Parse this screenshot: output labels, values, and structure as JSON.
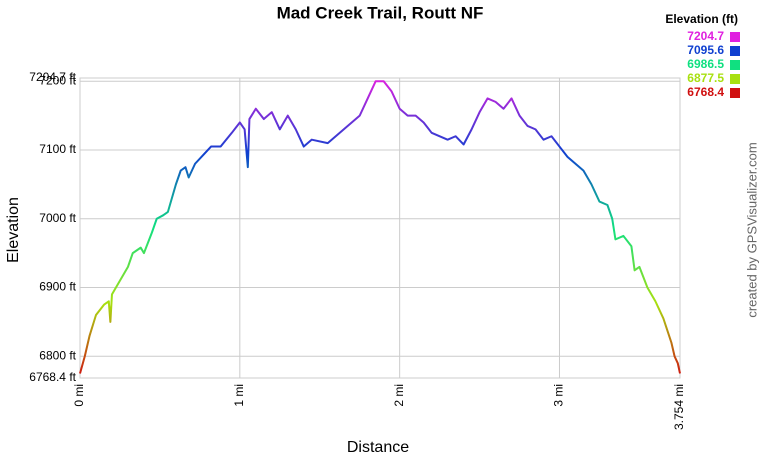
{
  "chart_data": {
    "type": "line",
    "title": "Mad Creek Trail, Routt NF",
    "x_label": "Distance",
    "y_label": "Elevation",
    "credit": "created by GPSVisualizer.com",
    "legend_title": "Elevation (ft)",
    "color_scale": [
      {
        "value": 7204.7,
        "color": "#e020e0"
      },
      {
        "value": 7095.6,
        "color": "#1040d0"
      },
      {
        "value": 6986.5,
        "color": "#10e080"
      },
      {
        "value": 6877.5,
        "color": "#a8e010"
      },
      {
        "value": 6768.4,
        "color": "#d01010"
      }
    ],
    "x": [
      0,
      0.03,
      0.06,
      0.1,
      0.15,
      0.18,
      0.19,
      0.2,
      0.25,
      0.3,
      0.33,
      0.38,
      0.4,
      0.45,
      0.48,
      0.52,
      0.55,
      0.6,
      0.63,
      0.66,
      0.68,
      0.72,
      0.78,
      0.82,
      0.88,
      0.95,
      1.0,
      1.03,
      1.05,
      1.06,
      1.1,
      1.15,
      1.2,
      1.25,
      1.3,
      1.35,
      1.4,
      1.45,
      1.55,
      1.6,
      1.65,
      1.7,
      1.75,
      1.8,
      1.85,
      1.9,
      1.95,
      2.0,
      2.05,
      2.1,
      2.15,
      2.2,
      2.3,
      2.35,
      2.4,
      2.45,
      2.5,
      2.55,
      2.6,
      2.65,
      2.7,
      2.75,
      2.8,
      2.85,
      2.9,
      2.95,
      3.0,
      3.05,
      3.1,
      3.15,
      3.2,
      3.25,
      3.3,
      3.33,
      3.35,
      3.4,
      3.45,
      3.47,
      3.5,
      3.55,
      3.6,
      3.65,
      3.7,
      3.72,
      3.74,
      3.754
    ],
    "values": [
      6775,
      6800,
      6830,
      6860,
      6875,
      6880,
      6850,
      6890,
      6910,
      6930,
      6950,
      6958,
      6950,
      6980,
      7000,
      7005,
      7010,
      7050,
      7070,
      7075,
      7060,
      7080,
      7095,
      7105,
      7105,
      7125,
      7140,
      7130,
      7075,
      7145,
      7160,
      7145,
      7155,
      7130,
      7150,
      7130,
      7105,
      7115,
      7110,
      7120,
      7130,
      7140,
      7150,
      7175,
      7200,
      7200,
      7185,
      7160,
      7150,
      7150,
      7140,
      7125,
      7115,
      7120,
      7108,
      7130,
      7155,
      7175,
      7170,
      7160,
      7175,
      7150,
      7135,
      7130,
      7115,
      7120,
      7105,
      7090,
      7080,
      7070,
      7050,
      7025,
      7020,
      7000,
      6970,
      6975,
      6960,
      6925,
      6930,
      6900,
      6880,
      6855,
      6820,
      6800,
      6790,
      6775
    ],
    "xlim": [
      0,
      3.754
    ],
    "xticks": [
      {
        "value": 0,
        "label": "0 mi"
      },
      {
        "value": 1,
        "label": "1 mi"
      },
      {
        "value": 2,
        "label": "2 mi"
      },
      {
        "value": 3,
        "label": "3 mi"
      },
      {
        "value": 3.754,
        "label": "3.754 mi"
      }
    ],
    "ylim": [
      6768.4,
      7204.7
    ],
    "yticks": [
      {
        "value": 6768.4,
        "label": "6768.4 ft"
      },
      {
        "value": 6800,
        "label": "6800 ft"
      },
      {
        "value": 6900,
        "label": "6900 ft"
      },
      {
        "value": 7000,
        "label": "7000 ft"
      },
      {
        "value": 7100,
        "label": "7100 ft"
      },
      {
        "value": 7200,
        "label": "7200 ft"
      },
      {
        "value": 7204.7,
        "label": "7204.7 ft"
      }
    ],
    "grid": true
  }
}
